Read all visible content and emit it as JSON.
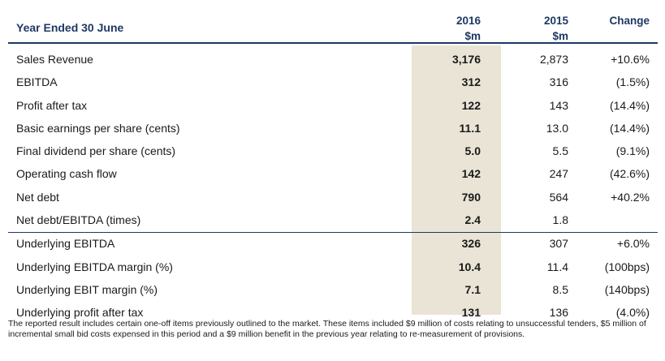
{
  "header": {
    "title": "Year Ended 30 June",
    "col_2016_year": "2016",
    "col_2016_unit": "$m",
    "col_2015_year": "2015",
    "col_2015_unit": "$m",
    "col_change": "Change"
  },
  "rows": [
    {
      "label": "Sales Revenue",
      "v2016": "3,176",
      "v2015": "2,873",
      "change": "+10.6%"
    },
    {
      "label": "EBITDA",
      "v2016": "312",
      "v2015": "316",
      "change": "(1.5%)"
    },
    {
      "label": "Profit after tax",
      "v2016": "122",
      "v2015": "143",
      "change": "(14.4%)"
    },
    {
      "label": "Basic earnings per share (cents)",
      "v2016": "11.1",
      "v2015": "13.0",
      "change": "(14.4%)"
    },
    {
      "label": "Final dividend per share (cents)",
      "v2016": "5.0",
      "v2015": "5.5",
      "change": "(9.1%)"
    },
    {
      "label": "Operating cash flow",
      "v2016": "142",
      "v2015": "247",
      "change": "(42.6%)"
    },
    {
      "label": "Net debt",
      "v2016": "790",
      "v2015": "564",
      "change": "+40.2%"
    },
    {
      "label": "Net debt/EBITDA (times)",
      "v2016": "2.4",
      "v2015": "1.8",
      "change": ""
    },
    {
      "label": "Underlying EBITDA",
      "v2016": "326",
      "v2015": "307",
      "change": "+6.0%"
    },
    {
      "label": "Underlying EBITDA margin (%)",
      "v2016": "10.4",
      "v2015": "11.4",
      "change": "(100bps)"
    },
    {
      "label": "Underlying EBIT margin (%)",
      "v2016": "7.1",
      "v2015": "8.5",
      "change": "(140bps)"
    },
    {
      "label": "Underlying profit after tax",
      "v2016": "131",
      "v2015": "136",
      "change": "(4.0%)"
    }
  ],
  "footnote": "The reported result includes certain one-off items previously outlined to the market. These items included $9 million of costs relating to unsuccessful tenders, $5 million of incremental small bid costs expensed in this period and a $9 million benefit in the previous year relating to re-measurement of provisions.",
  "colors": {
    "header_text": "#1f3864",
    "shade": "#e9e4d5"
  }
}
